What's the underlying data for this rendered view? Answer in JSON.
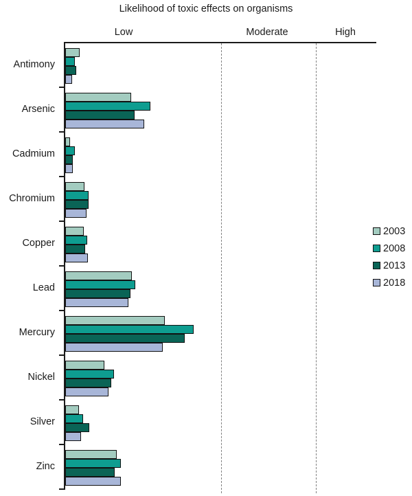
{
  "title": "Likelihood of toxic effects on organisms",
  "legend": {
    "items": [
      {
        "label": "2003",
        "color": "#a3ccc0"
      },
      {
        "label": "2008",
        "color": "#0e9d90"
      },
      {
        "label": "2013",
        "color": "#0a6456"
      },
      {
        "label": "2018",
        "color": "#a8b6d8"
      }
    ]
  },
  "chart_data": {
    "type": "bar",
    "orientation": "horizontal",
    "title": "Likelihood of toxic effects on organisms",
    "categories": [
      "Antimony",
      "Arsenic",
      "Cadmium",
      "Chromium",
      "Copper",
      "Lead",
      "Mercury",
      "Nickel",
      "Silver",
      "Zinc"
    ],
    "series": [
      {
        "name": "2003",
        "color": "#a3ccc0",
        "values": [
          4.6,
          21.3,
          1.5,
          6.2,
          5.9,
          21.5,
          32.1,
          12.5,
          4.4,
          16.5
        ]
      },
      {
        "name": "2008",
        "color": "#0e9d90",
        "values": [
          3.1,
          27.3,
          3.1,
          7.5,
          7.0,
          22.6,
          41.3,
          15.6,
          5.7,
          17.8
        ]
      },
      {
        "name": "2013",
        "color": "#0a6456",
        "values": [
          3.5,
          22.4,
          2.4,
          7.5,
          6.4,
          20.9,
          38.5,
          14.9,
          7.7,
          16.0
        ]
      },
      {
        "name": "2018",
        "color": "#a8b6d8",
        "values": [
          2.2,
          25.3,
          2.4,
          6.8,
          7.3,
          20.4,
          31.4,
          13.8,
          5.1,
          17.8
        ]
      }
    ],
    "values_unit": "percent of x-axis length (qualitative axis)",
    "xlabel": "",
    "ylabel": "",
    "x_axis": {
      "type": "qualitative",
      "zones": [
        {
          "label": "Low",
          "start_pct": 0,
          "end_pct": 50,
          "label_center_pct": 19
        },
        {
          "label": "Moderate",
          "start_pct": 50,
          "end_pct": 80.5,
          "label_center_pct": 65
        },
        {
          "label": "High",
          "start_pct": 80.5,
          "end_pct": 100,
          "label_center_pct": 90
        }
      ],
      "zone_divider_style": "dashed"
    },
    "grid": false,
    "legend_position": "right"
  }
}
